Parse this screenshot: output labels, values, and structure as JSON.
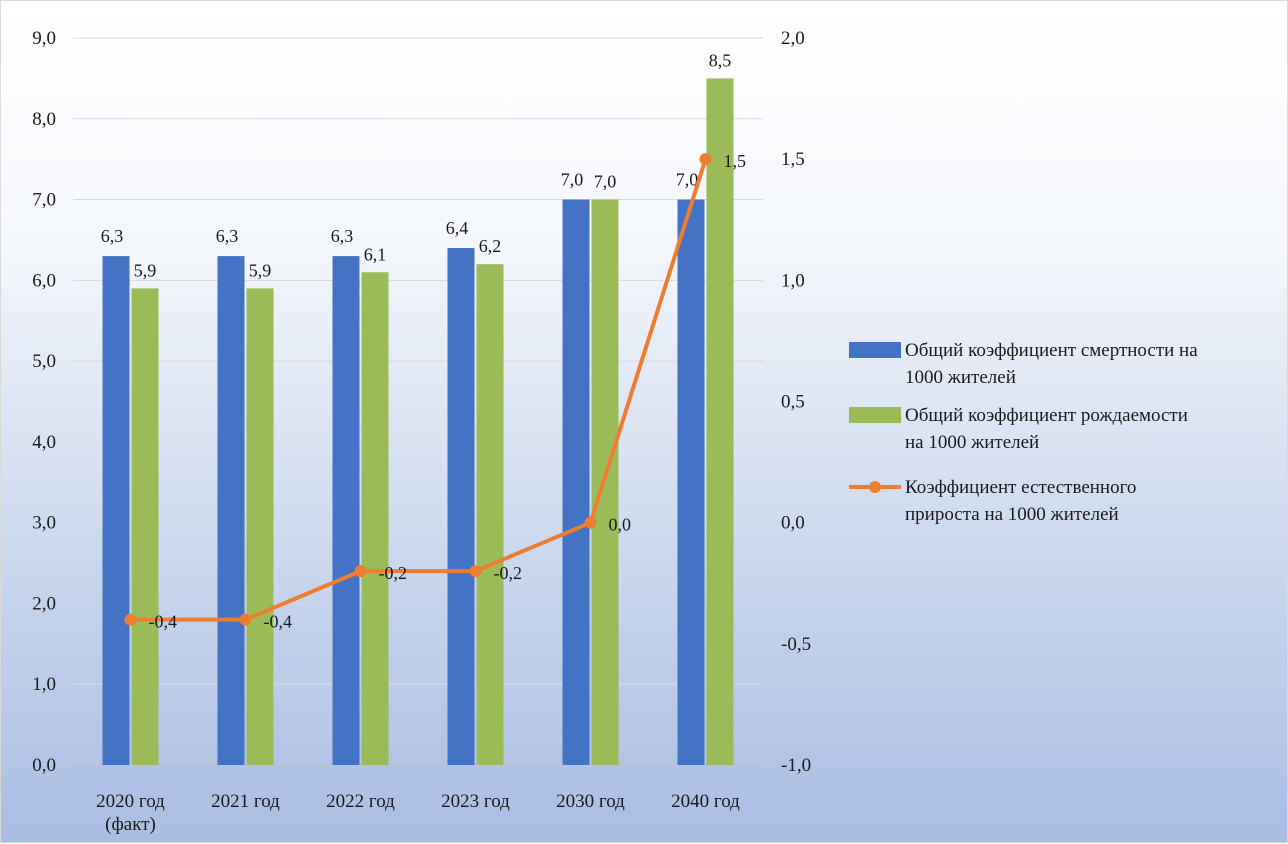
{
  "chart_data": {
    "type": "bar",
    "categories": [
      [
        "2020 год",
        "(факт)"
      ],
      [
        "2021 год"
      ],
      [
        "2022 год"
      ],
      [
        "2023 год"
      ],
      [
        "2030 год"
      ],
      [
        "2040 год"
      ]
    ],
    "y_left": {
      "min": 0,
      "max": 9,
      "step": 1,
      "tick_labels": [
        "0,0",
        "1,0",
        "2,0",
        "3,0",
        "4,0",
        "5,0",
        "6,0",
        "7,0",
        "8,0",
        "9,0"
      ]
    },
    "y_right": {
      "min": -1,
      "max": 2,
      "step": 0.5,
      "tick_labels": [
        "-1,0",
        "-0,5",
        "0,0",
        "0,5",
        "1,0",
        "1,5",
        "2,0"
      ]
    },
    "grid": true,
    "legend_position": "right",
    "series": [
      {
        "name": "Общий коэффициент смертности на 1000 жителей",
        "legend_lines": [
          "Общий коэффициент смертности на",
          "1000 жителей"
        ],
        "kind": "bar",
        "axis": "left",
        "color": "#4472c4",
        "values": [
          6.3,
          6.3,
          6.3,
          6.4,
          7.0,
          7.0
        ],
        "labels": [
          "6,3",
          "6,3",
          "6,3",
          "6,4",
          "7,0",
          "7,0"
        ]
      },
      {
        "name": "Общий коэффициент рождаемости на 1000 жителей",
        "legend_lines": [
          "Общий коэффициент рождаемости",
          "на 1000 жителей"
        ],
        "kind": "bar",
        "axis": "left",
        "color": "#9bbb59",
        "values": [
          5.9,
          5.9,
          6.1,
          6.2,
          7.0,
          8.5
        ],
        "labels": [
          "5,9",
          "5,9",
          "6,1",
          "6,2",
          "7,0",
          "8,5"
        ]
      },
      {
        "name": "Коэффициент естественного прироста на 1000 жителей",
        "legend_lines": [
          "Коэффициент естественного",
          "прироста на 1000 жителей"
        ],
        "kind": "line",
        "axis": "right",
        "color": "#ed7d31",
        "values": [
          -0.4,
          -0.4,
          -0.2,
          -0.2,
          0.0,
          1.5
        ],
        "labels": [
          "-0,4",
          "-0,4",
          "-0,2",
          "-0,2",
          "0,0",
          "1,5"
        ]
      }
    ]
  }
}
